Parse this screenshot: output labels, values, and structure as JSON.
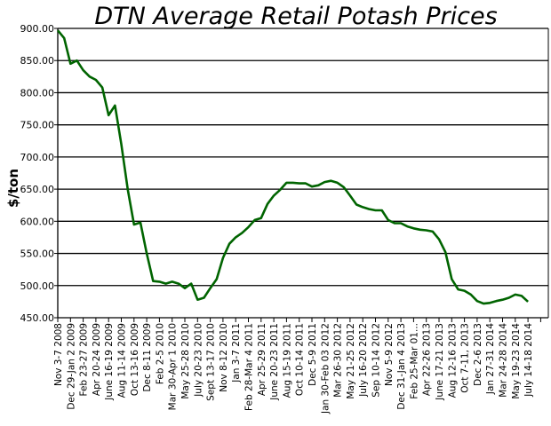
{
  "chart_data": {
    "type": "line",
    "title": "DTN Average Retail Potash Prices",
    "xlabel": "",
    "ylabel": "$/ton",
    "ylim": [
      450,
      900
    ],
    "yticks": [
      "450.00",
      "500.00",
      "550.00",
      "600.00",
      "650.00",
      "700.00",
      "750.00",
      "800.00",
      "850.00",
      "900.00"
    ],
    "grid": true,
    "legend": "none",
    "line_color": "#006400",
    "tick_interval_weeks": 8,
    "first_tick_date": "2008-11-03",
    "categories": [
      "Nov 3-7 2008",
      "Dec 29-Jan 2 2009",
      "Feb 23-27 2009",
      "Apr 20-24 2009",
      "June 16-19 2009",
      "Aug 11-14 2009",
      "Oct 13-16 2009",
      "Dec 8-11 2009",
      "Feb 2-5 2010",
      "Mar 30-Apr 1 2010",
      "May 25-28 2010",
      "July 20-23 2010",
      "Sept 13-17 2010",
      "Nov 8-12 2010",
      "Jan 3-7 2011",
      "Feb 28-Mar 4 2011",
      "Apr 25-29 2011",
      "June 20-23 2011",
      "Aug 15-19 2011",
      "Oct 10-14 2011",
      "Dec 5-9 2011",
      "Jan 30-Feb 03 2012",
      "Mar 26-30 2012",
      "May 21-25 2012",
      "July 16-20 2012",
      "Sep 10-14 2012",
      "Nov 5-9 2012",
      "Dec 31-Jan 4 2013",
      "Feb 25-Mar 01...",
      "Apr 22-26 2013",
      "June 17-21 2013",
      "Aug 12-16 2013",
      "Oct 7-11, 2013",
      "Dec 2-6 2013",
      "Jan 27-31 2014",
      "Mar 24-28 2014",
      "May 19-23 2014",
      "July 14-18 2014",
      ""
    ],
    "series": [
      {
        "x": [
          "2008-11-03",
          "2008-12-01",
          "2008-12-29",
          "2009-01-26",
          "2009-02-23",
          "2009-03-23",
          "2009-04-20",
          "2009-05-18",
          "2009-06-15",
          "2009-07-13",
          "2009-08-10",
          "2009-09-07",
          "2009-10-05",
          "2009-11-02",
          "2009-11-30",
          "2009-12-28",
          "2010-01-25",
          "2010-02-22",
          "2010-03-22",
          "2010-04-19",
          "2010-05-17",
          "2010-06-14",
          "2010-07-12",
          "2010-08-09",
          "2010-09-06",
          "2010-10-04",
          "2010-11-01",
          "2010-11-29",
          "2010-12-27",
          "2011-01-24",
          "2011-02-21",
          "2011-03-21",
          "2011-04-18",
          "2011-05-16",
          "2011-06-13",
          "2011-07-11",
          "2011-08-08",
          "2011-09-05",
          "2011-10-03",
          "2011-10-31",
          "2011-11-28",
          "2011-12-26",
          "2012-01-23",
          "2012-02-20",
          "2012-03-19",
          "2012-04-16",
          "2012-05-14",
          "2012-06-11",
          "2012-07-09",
          "2012-08-06",
          "2012-09-03",
          "2012-10-01",
          "2012-10-29",
          "2012-11-26",
          "2012-12-24",
          "2013-01-21",
          "2013-02-18",
          "2013-03-18",
          "2013-04-15",
          "2013-05-13",
          "2013-06-10",
          "2013-07-08",
          "2013-08-05",
          "2013-09-02",
          "2013-09-30",
          "2013-10-28",
          "2013-11-25",
          "2013-12-23",
          "2014-01-20",
          "2014-02-17",
          "2014-03-17",
          "2014-04-14",
          "2014-05-12",
          "2014-06-09",
          "2014-07-07"
        ],
        "values": [
          897,
          885,
          845,
          850,
          835,
          825,
          820,
          808,
          765,
          780,
          720,
          650,
          595,
          598,
          550,
          507,
          506,
          503,
          506,
          503,
          496,
          503,
          478,
          481,
          496,
          510,
          543,
          565,
          575,
          582,
          591,
          602,
          605,
          627,
          640,
          649,
          660,
          660,
          659,
          659,
          654,
          656,
          661,
          663,
          660,
          653,
          640,
          626,
          622,
          619,
          617,
          617,
          602,
          597,
          597,
          592,
          589,
          587,
          586,
          584,
          572,
          552,
          510,
          494,
          492,
          486,
          476,
          472,
          473,
          476,
          478,
          481,
          486,
          484,
          475
        ]
      }
    ]
  }
}
